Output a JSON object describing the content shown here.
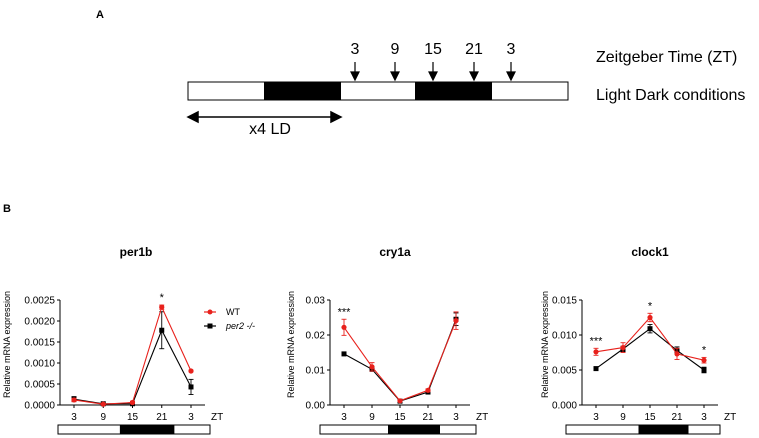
{
  "panel_a": {
    "label": "A",
    "zt_values": [
      "3",
      "9",
      "15",
      "21",
      "3"
    ],
    "zt_caption": "Zeitgeber Time (ZT)",
    "condition_caption": "Light Dark conditions",
    "cycle_caption": "x4 LD"
  },
  "panel_b": {
    "label": "B"
  },
  "legend": {
    "wt_label": "WT",
    "mutant_label": "per2 -/-",
    "wt_color": "#e8211c",
    "mutant_color": "#000000"
  },
  "chart_data": [
    {
      "type": "line",
      "title": "per1b",
      "xlabel": "ZT",
      "ylabel": "Relative mRNA expression",
      "x": [
        "3",
        "9",
        "15",
        "21",
        "3"
      ],
      "ylim": [
        0,
        0.0025
      ],
      "yticks": [
        "0.0000",
        "0.0005",
        "0.0010",
        "0.0015",
        "0.0020",
        "0.0025"
      ],
      "series": [
        {
          "name": "WT",
          "values": [
            0.00012,
            2e-05,
            6e-05,
            0.00233,
            0.00081
          ],
          "errors": [
            4e-05,
            1e-05,
            3e-05,
            5e-05,
            2e-05
          ]
        },
        {
          "name": "per2 -/-",
          "values": [
            0.00014,
            3e-05,
            3e-05,
            0.00178,
            0.00043
          ],
          "errors": [
            6e-05,
            1e-05,
            3e-05,
            0.00044,
            0.00018
          ]
        }
      ],
      "annotations": [
        {
          "x": "21",
          "text": "*"
        }
      ]
    },
    {
      "type": "line",
      "title": "cry1a",
      "xlabel": "ZT",
      "ylabel": "Relative mRNA expression",
      "x": [
        "3",
        "9",
        "15",
        "21",
        "3"
      ],
      "ylim": [
        0,
        0.03
      ],
      "yticks": [
        "0.00",
        "0.01",
        "0.02",
        "0.03"
      ],
      "series": [
        {
          "name": "WT",
          "values": [
            0.0222,
            0.0109,
            0.0012,
            0.0042,
            0.0241
          ],
          "errors": [
            0.0023,
            0.0012,
            0.0002,
            0.0004,
            0.0025
          ]
        },
        {
          "name": "per2 -/-",
          "values": [
            0.0146,
            0.0102,
            0.0011,
            0.0037,
            0.0245
          ],
          "errors": [
            0.0003,
            0.0005,
            0.0002,
            0.0003,
            0.0018
          ]
        }
      ],
      "annotations": [
        {
          "x": "3",
          "text": "***"
        }
      ]
    },
    {
      "type": "line",
      "title": "clock1",
      "xlabel": "ZT",
      "ylabel": "Relative mRNA expression",
      "x": [
        "3",
        "9",
        "15",
        "21",
        "3"
      ],
      "ylim": [
        0,
        0.015
      ],
      "yticks": [
        "0.000",
        "0.005",
        "0.010",
        "0.015"
      ],
      "series": [
        {
          "name": "WT",
          "values": [
            0.0076,
            0.0082,
            0.0125,
            0.0073,
            0.0064
          ],
          "errors": [
            0.0005,
            0.0007,
            0.0006,
            0.0008,
            0.0004
          ]
        },
        {
          "name": "per2 -/-",
          "values": [
            0.0052,
            0.008,
            0.0109,
            0.0078,
            0.005
          ],
          "errors": [
            0.0002,
            0.0004,
            0.0006,
            0.0005,
            0.0004
          ]
        }
      ],
      "annotations": [
        {
          "x": "3",
          "text": "***"
        },
        {
          "x": "15",
          "text": "*"
        },
        {
          "x": "3b",
          "text": "*"
        }
      ]
    }
  ]
}
